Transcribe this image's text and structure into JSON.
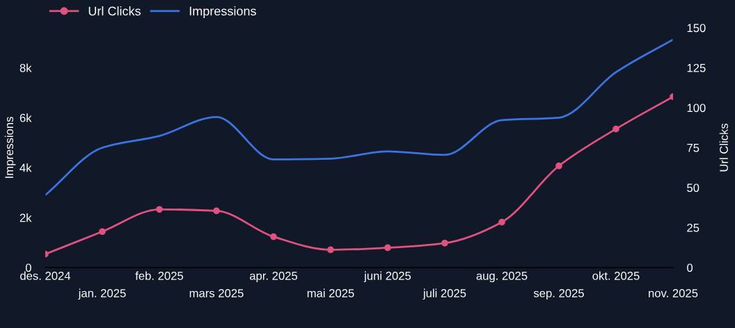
{
  "chart_data": {
    "type": "line",
    "categories": [
      "des. 2024",
      "jan. 2025",
      "feb. 2025",
      "mars 2025",
      "apr. 2025",
      "mai 2025",
      "juni 2025",
      "juli 2025",
      "aug. 2025",
      "sep. 2025",
      "okt. 2025",
      "nov. 2025"
    ],
    "series": [
      {
        "name": "Url Clicks",
        "color": "#e0527f",
        "axis": "y2",
        "marker": "circle",
        "values": [
          8.4,
          22.5,
          36.4,
          35.5,
          19.3,
          11.1,
          12.4,
          15.3,
          28.4,
          63.6,
          86.7,
          106.9
        ]
      },
      {
        "name": "Impressions",
        "color": "#3b74e0",
        "marker": "none",
        "values": [
          2900,
          4800,
          5270,
          6030,
          4330,
          4360,
          4650,
          4510,
          5900,
          6000,
          7820,
          9130
        ]
      }
    ],
    "ylabel": "Impressions",
    "y2label": "Url Clicks",
    "ylim": [
      0,
      9600
    ],
    "yticks": [
      0,
      {
        "value": 2000,
        "label": "2k"
      },
      {
        "value": 4000,
        "label": "4k"
      },
      {
        "value": 6000,
        "label": "6k"
      },
      {
        "value": 8000,
        "label": "8k"
      }
    ],
    "y2lim": [
      0,
      150
    ],
    "y2ticks": [
      0,
      25,
      50,
      75,
      100,
      125,
      150
    ],
    "grid": false,
    "legend": "top left",
    "line_style": "solid"
  }
}
